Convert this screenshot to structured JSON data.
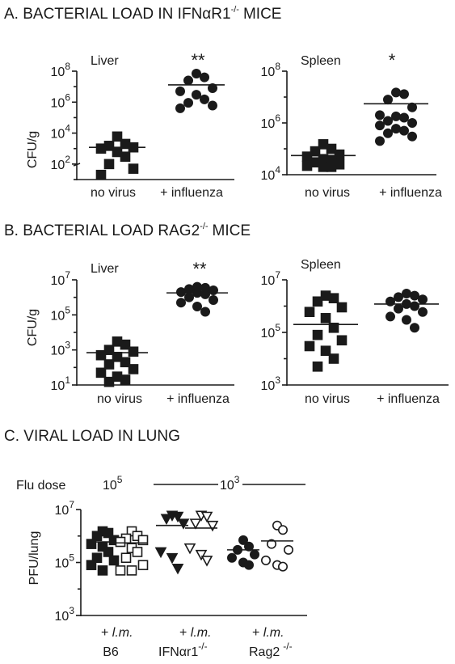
{
  "sections": {
    "a": {
      "prefix": "A. BACTERIAL LOAD IN IFN",
      "alpha": "α",
      "r1": "R1",
      "sup": "-/-",
      "tail": "MICE"
    },
    "b": {
      "prefix": "B. BACTERIAL LOAD RAG2",
      "sup": "-/-",
      "tail": "MICE"
    },
    "c": {
      "title": "C. VIRAL LOAD IN LUNG"
    }
  },
  "flu_dose": {
    "label": "Flu dose",
    "dose_b6": {
      "base": "10",
      "exp": "5"
    },
    "dose_other": {
      "base": "10",
      "exp": "3"
    }
  },
  "colors": {
    "ink": "#1a1a1a",
    "background": "#ffffff"
  },
  "chart_data": [
    {
      "id": "A-liver",
      "type": "scatter",
      "title": "Liver",
      "ylabel": "CFU/g",
      "y_scale": "log",
      "ylim": [
        10,
        100000000
      ],
      "ticks": [
        {
          "base": "10",
          "exp": "2",
          "value": 100
        },
        {
          "base": "10",
          "exp": "4",
          "value": 10000
        },
        {
          "base": "10",
          "exp": "6",
          "value": 1000000
        },
        {
          "base": "10",
          "exp": "8",
          "value": 100000000
        }
      ],
      "categories": [
        "no virus",
        "+ influenza"
      ],
      "groups": [
        {
          "marker": "square",
          "points": [
            6000,
            2000,
            1500,
            1200,
            1000,
            600,
            300,
            100,
            50,
            20
          ],
          "mean": 1200
        },
        {
          "marker": "circle",
          "points": [
            70000000,
            40000000,
            25000000,
            8000000,
            5000000,
            3000000,
            1500000,
            900000,
            600000,
            400000
          ],
          "mean": 13000000
        }
      ],
      "significance": "**"
    },
    {
      "id": "A-spleen",
      "type": "scatter",
      "title": "Spleen",
      "ylabel": "",
      "y_scale": "log",
      "ylim": [
        10000,
        100000000
      ],
      "ticks": [
        {
          "base": "10",
          "exp": "4",
          "value": 10000
        },
        {
          "base": "10",
          "exp": "6",
          "value": 1000000
        },
        {
          "base": "10",
          "exp": "8",
          "value": 100000000
        }
      ],
      "categories": [
        "no virus",
        "+ influenza"
      ],
      "groups": [
        {
          "marker": "square",
          "points": [
            150000,
            100000,
            80000,
            60000,
            50000,
            40000,
            35000,
            30000,
            25000,
            22000,
            20000,
            20000
          ],
          "mean": 55000
        },
        {
          "marker": "circle",
          "points": [
            15000000,
            13000000,
            8000000,
            4000000,
            2000000,
            1800000,
            1600000,
            1200000,
            1000000,
            800000,
            600000,
            500000,
            400000,
            300000,
            200000
          ],
          "mean": 5500000
        }
      ],
      "significance": "*"
    },
    {
      "id": "B-liver",
      "type": "scatter",
      "title": "Liver",
      "ylabel": "CFU/g",
      "y_scale": "log",
      "ylim": [
        10,
        10000000
      ],
      "ticks": [
        {
          "base": "10",
          "exp": "1",
          "value": 10
        },
        {
          "base": "10",
          "exp": "3",
          "value": 1000
        },
        {
          "base": "10",
          "exp": "5",
          "value": 100000
        },
        {
          "base": "10",
          "exp": "7",
          "value": 10000000
        }
      ],
      "categories": [
        "no virus",
        "+ influenza"
      ],
      "groups": [
        {
          "marker": "square",
          "points": [
            3000,
            2000,
            1000,
            800,
            500,
            400,
            200,
            150,
            80,
            50,
            30,
            20,
            15
          ],
          "mean": 700
        },
        {
          "marker": "circle",
          "points": [
            4000000,
            3500000,
            3000000,
            2500000,
            2000000,
            1800000,
            1500000,
            1000000,
            700000,
            500000,
            300000,
            150000
          ],
          "mean": 1800000
        }
      ],
      "significance": "**"
    },
    {
      "id": "B-spleen",
      "type": "scatter",
      "title": "Spleen",
      "ylabel": "",
      "y_scale": "log",
      "ylim": [
        1000,
        10000000
      ],
      "ticks": [
        {
          "base": "10",
          "exp": "3",
          "value": 1000
        },
        {
          "base": "10",
          "exp": "5",
          "value": 100000
        },
        {
          "base": "10",
          "exp": "7",
          "value": 10000000
        }
      ],
      "categories": [
        "no virus",
        "+ influenza"
      ],
      "groups": [
        {
          "marker": "square",
          "points": [
            2500000,
            2000000,
            1500000,
            900000,
            600000,
            350000,
            150000,
            80000,
            50000,
            30000,
            20000,
            10000,
            5000
          ],
          "mean": 200000
        },
        {
          "marker": "circle",
          "points": [
            3000000,
            2500000,
            2200000,
            1800000,
            1500000,
            1200000,
            1000000,
            800000,
            600000,
            400000,
            300000,
            150000
          ],
          "mean": 1200000
        }
      ],
      "significance": ""
    },
    {
      "id": "C-lung",
      "type": "scatter",
      "title": "",
      "ylabel": "PFU/lung",
      "y_scale": "log",
      "ylim": [
        1000,
        10000000
      ],
      "ticks": [
        {
          "base": "10",
          "exp": "3",
          "value": 1000
        },
        {
          "base": "10",
          "exp": "5",
          "value": 100000
        },
        {
          "base": "10",
          "exp": "7",
          "value": 10000000
        }
      ],
      "x_groups": [
        {
          "label": "B6",
          "sub": "+ l.m.",
          "sup": ""
        },
        {
          "label": "IFNαr1",
          "sub": "+ l.m.",
          "sup": "-/-"
        },
        {
          "label": "Rag2",
          "sub": "+ l.m.",
          "sup": "-/-"
        }
      ],
      "groups": [
        {
          "marker": "square",
          "points": [
            1500000,
            1300000,
            1000000,
            700000,
            500000,
            400000,
            250000,
            150000,
            120000,
            80000,
            50000
          ],
          "mean": 600000
        },
        {
          "marker": "square-open",
          "points": [
            1500000,
            1000000,
            800000,
            700000,
            600000,
            350000,
            250000,
            150000,
            80000,
            50000,
            50000
          ],
          "mean": 550000
        },
        {
          "marker": "triangle-down",
          "points": [
            6000000,
            5500000,
            4500000,
            3000000,
            250000,
            150000,
            60000
          ],
          "mean": 2500000
        },
        {
          "marker": "triangle-down-open",
          "points": [
            6000000,
            5500000,
            3000000,
            2500000,
            350000,
            200000,
            120000
          ],
          "mean": 2000000
        },
        {
          "marker": "circle",
          "points": [
            700000,
            400000,
            300000,
            200000,
            150000,
            100000,
            80000
          ],
          "mean": 300000
        },
        {
          "marker": "circle-open",
          "points": [
            2500000,
            1700000,
            500000,
            300000,
            120000,
            80000,
            70000
          ],
          "mean": 650000
        }
      ]
    }
  ]
}
